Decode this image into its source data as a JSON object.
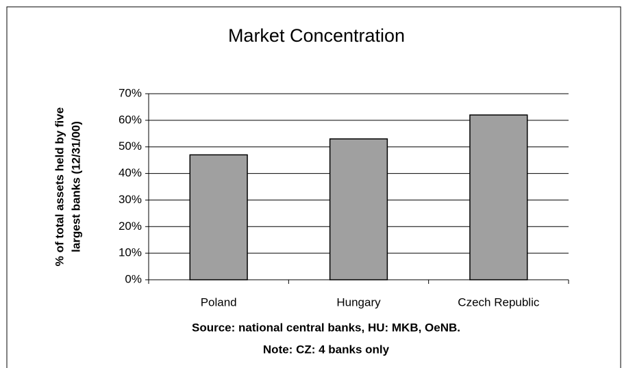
{
  "chart_data": {
    "type": "bar",
    "title": "Market Concentration",
    "y_label": [
      "% of total assets held by five",
      "largest banks (12/31/00)"
    ],
    "categories": [
      "Poland",
      "Hungary",
      "Czech Republic"
    ],
    "values": [
      47,
      53,
      62
    ],
    "color": "#a0a0a0",
    "ylim": [
      0,
      70
    ],
    "yticks": [
      {
        "value": 0,
        "label": "0%"
      },
      {
        "value": 10,
        "label": "10%"
      },
      {
        "value": 20,
        "label": "20%"
      },
      {
        "value": 30,
        "label": "30%"
      },
      {
        "value": 40,
        "label": "40%"
      },
      {
        "value": 50,
        "label": "50%"
      },
      {
        "value": 60,
        "label": "60%"
      },
      {
        "value": 70,
        "label": "70%"
      }
    ],
    "grid": true,
    "notes": [
      "Source: national central banks, HU: MKB, OeNB.",
      "Note: CZ: 4 banks only"
    ]
  }
}
